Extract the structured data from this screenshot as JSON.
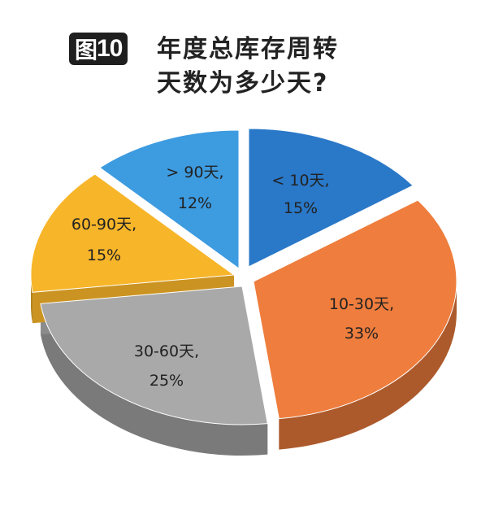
{
  "figure": {
    "badge_prefix": "图",
    "badge_number": "10",
    "title_line1": "年度总库存周转",
    "title_line2": "天数为多少天?"
  },
  "chart_data": {
    "type": "pie",
    "title": "年度总库存周转天数为多少天?",
    "slices": [
      {
        "label": "< 10天,",
        "value": 15,
        "value_label": "15%",
        "color": "#2a78c8"
      },
      {
        "label": "10-30天,",
        "value": 33,
        "value_label": "33%",
        "color": "#ef7d3d"
      },
      {
        "label": "30-60天,",
        "value": 25,
        "value_label": "25%",
        "color": "#a9a9a9"
      },
      {
        "label": "60-90天,",
        "value": 15,
        "value_label": "15%",
        "color": "#f7b52a"
      },
      {
        "label": "> 90天,",
        "value": 12,
        "value_label": "12%",
        "color": "#3d9be0"
      }
    ],
    "style": "3d-exploded"
  }
}
